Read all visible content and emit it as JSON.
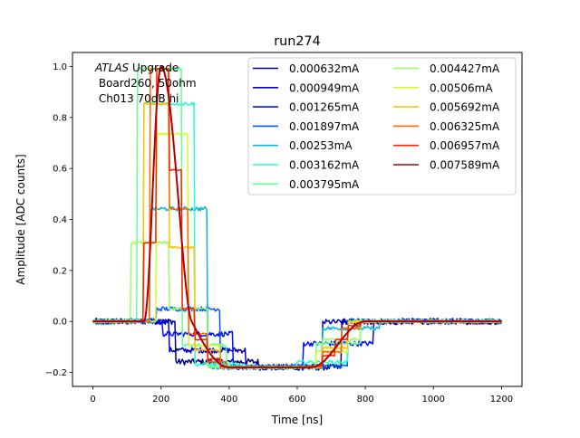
{
  "chart_data": {
    "type": "line",
    "title": "run274",
    "xlabel": "Time [ns]",
    "ylabel": "Amplitude [ADC counts]",
    "xlim": [
      -60,
      1260
    ],
    "ylim": [
      -0.255,
      1.055
    ],
    "xticks": [
      0,
      200,
      400,
      600,
      800,
      1000,
      1200
    ],
    "yticks": [
      -0.2,
      0.0,
      0.2,
      0.4,
      0.6,
      0.8,
      1.0
    ],
    "ytick_labels": [
      "−0.2",
      "0.0",
      "0.2",
      "0.4",
      "0.6",
      "0.8",
      "1.0"
    ],
    "annotation": {
      "italic": "ATLAS",
      "rest": " Upgrade",
      "line2": " Board260, 50ohm",
      "line3": " Ch013 70dB hi"
    },
    "pulse": {
      "t_start": 0,
      "t_end": 1200,
      "step_ns": 3.125,
      "baseline": 0.0,
      "peak_time_ns": 200,
      "peak_value": 1.0,
      "rise_start_ns": 150,
      "fall_zero_ns": 290,
      "undershoot_value": -0.18,
      "undershoot_flat_from_ns": 400,
      "undershoot_flat_to_ns": 640,
      "recovery_end_ns": 800
    },
    "legend_position": "upper-right",
    "series": [
      {
        "name": "0.000632mA",
        "color": "#00007f",
        "noise": 0.012
      },
      {
        "name": "0.000949mA",
        "color": "#0000c4",
        "noise": 0.011
      },
      {
        "name": "0.001265mA",
        "color": "#0010ff",
        "noise": 0.01
      },
      {
        "name": "0.001897mA",
        "color": "#0058ff",
        "noise": 0.009
      },
      {
        "name": "0.00253mA",
        "color": "#00b8d8",
        "noise": 0.008
      },
      {
        "name": "0.003162mA",
        "color": "#27ffcf",
        "noise": 0.007
      },
      {
        "name": "0.003795mA",
        "color": "#60ff97",
        "noise": 0.006
      },
      {
        "name": "0.004427mA",
        "color": "#97ff60",
        "noise": 0.005
      },
      {
        "name": "0.00506mA",
        "color": "#cfff27",
        "noise": 0.004
      },
      {
        "name": "0.005692mA",
        "color": "#ffc400",
        "noise": 0.004
      },
      {
        "name": "0.006325mA",
        "color": "#ff6800",
        "noise": 0.003
      },
      {
        "name": "0.006957mA",
        "color": "#ff2200",
        "noise": 0.002
      },
      {
        "name": "0.007589mA",
        "color": "#b20000",
        "noise": 0.0
      }
    ]
  }
}
